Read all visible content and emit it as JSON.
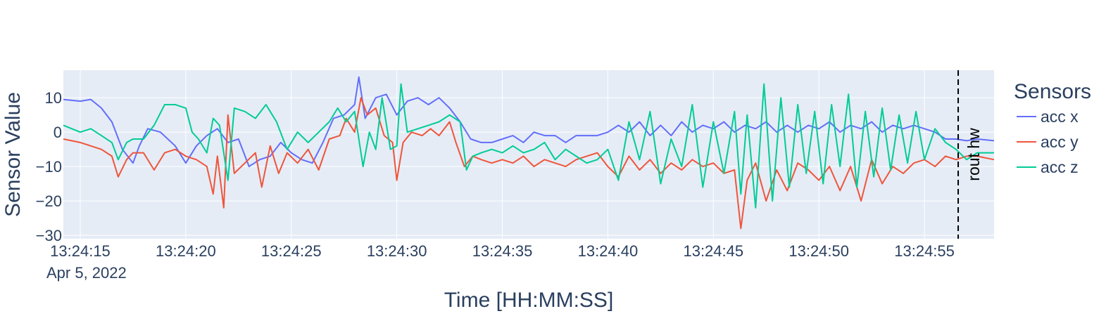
{
  "chart_data": {
    "type": "line",
    "xlabel": "Time [HH:MM:SS]",
    "ylabel": "Sensor Value",
    "date_label": "Apr 5, 2022",
    "x_start": "13:24:14.2",
    "x_range_seconds": [
      14.2,
      58.3
    ],
    "ylim": [
      -31,
      18
    ],
    "x_ticks": [
      {
        "label": "13:24:15",
        "t": 15
      },
      {
        "label": "13:24:20",
        "t": 20
      },
      {
        "label": "13:24:25",
        "t": 25
      },
      {
        "label": "13:24:30",
        "t": 30
      },
      {
        "label": "13:24:35",
        "t": 35
      },
      {
        "label": "13:24:40",
        "t": 40
      },
      {
        "label": "13:24:45",
        "t": 45
      },
      {
        "label": "13:24:50",
        "t": 50
      },
      {
        "label": "13:24:55",
        "t": 55
      }
    ],
    "y_ticks": [
      {
        "label": "10",
        "v": 10
      },
      {
        "label": "0",
        "v": 0
      },
      {
        "label": "−10",
        "v": -10
      },
      {
        "label": "−20",
        "v": -20
      },
      {
        "label": "−30",
        "v": -30
      }
    ],
    "grid": true,
    "legend": {
      "title": "Sensors",
      "placement": "right"
    },
    "annotation": {
      "label": "rout hw",
      "t": 56.6,
      "style": "dashed vertical line"
    },
    "series": [
      {
        "name": "acc x",
        "color": "#636efa",
        "points": [
          [
            14.2,
            9.5
          ],
          [
            15.0,
            9.0
          ],
          [
            15.5,
            9.5
          ],
          [
            16.0,
            7.0
          ],
          [
            16.5,
            3.0
          ],
          [
            17.0,
            -5.0
          ],
          [
            17.5,
            -9.0
          ],
          [
            17.8,
            -4.0
          ],
          [
            18.2,
            1.0
          ],
          [
            18.8,
            0.0
          ],
          [
            19.5,
            -4.0
          ],
          [
            20.0,
            -9.0
          ],
          [
            20.5,
            -4.0
          ],
          [
            21.0,
            -1.0
          ],
          [
            21.5,
            1.0
          ],
          [
            22.0,
            -3.0
          ],
          [
            22.5,
            -2.0
          ],
          [
            23.0,
            -10.0
          ],
          [
            23.5,
            -8.0
          ],
          [
            24.0,
            -7.0
          ],
          [
            24.5,
            -3.0
          ],
          [
            25.0,
            -6.0
          ],
          [
            25.5,
            -8.0
          ],
          [
            26.0,
            -9.0
          ],
          [
            26.5,
            -3.0
          ],
          [
            27.0,
            4.0
          ],
          [
            27.5,
            5.0
          ],
          [
            28.0,
            8.0
          ],
          [
            28.2,
            16.0
          ],
          [
            28.5,
            4.0
          ],
          [
            29.0,
            10.0
          ],
          [
            29.5,
            11.0
          ],
          [
            30.0,
            5.0
          ],
          [
            30.5,
            9.0
          ],
          [
            31.0,
            10.0
          ],
          [
            31.5,
            8.0
          ],
          [
            32.0,
            10.0
          ],
          [
            32.5,
            7.0
          ],
          [
            33.0,
            3.0
          ],
          [
            33.5,
            -2.0
          ],
          [
            34.0,
            -3.0
          ],
          [
            34.5,
            -3.0
          ],
          [
            35.0,
            -2.0
          ],
          [
            35.5,
            -1.0
          ],
          [
            36.0,
            -3.0
          ],
          [
            36.5,
            0.0
          ],
          [
            37.0,
            -1.0
          ],
          [
            37.5,
            -1.0
          ],
          [
            38.0,
            -3.0
          ],
          [
            38.5,
            -1.0
          ],
          [
            39.0,
            -1.0
          ],
          [
            39.5,
            -1.0
          ],
          [
            40.0,
            0.0
          ],
          [
            40.5,
            2.0
          ],
          [
            41.0,
            0.0
          ],
          [
            41.5,
            3.0
          ],
          [
            42.0,
            -1.0
          ],
          [
            42.5,
            2.0
          ],
          [
            43.0,
            -1.0
          ],
          [
            43.5,
            3.0
          ],
          [
            44.0,
            0.0
          ],
          [
            44.5,
            2.0
          ],
          [
            45.0,
            1.0
          ],
          [
            45.5,
            3.0
          ],
          [
            46.0,
            0.0
          ],
          [
            46.5,
            2.0
          ],
          [
            47.0,
            1.0
          ],
          [
            47.5,
            3.0
          ],
          [
            48.0,
            0.0
          ],
          [
            48.5,
            2.0
          ],
          [
            49.0,
            0.0
          ],
          [
            49.5,
            2.0
          ],
          [
            50.0,
            1.0
          ],
          [
            50.5,
            3.0
          ],
          [
            51.0,
            0.0
          ],
          [
            51.5,
            2.0
          ],
          [
            52.0,
            1.0
          ],
          [
            52.5,
            3.0
          ],
          [
            53.0,
            0.0
          ],
          [
            53.5,
            2.0
          ],
          [
            54.0,
            1.0
          ],
          [
            54.5,
            2.0
          ],
          [
            55.0,
            1.0
          ],
          [
            55.5,
            0.0
          ],
          [
            56.0,
            -2.0
          ],
          [
            56.5,
            -2.0
          ],
          [
            57.0,
            -2.5
          ],
          [
            57.5,
            -2.0
          ],
          [
            58.3,
            -2.5
          ]
        ]
      },
      {
        "name": "acc y",
        "color": "#ef553b",
        "points": [
          [
            14.2,
            -2.0
          ],
          [
            15.0,
            -3.0
          ],
          [
            15.5,
            -4.0
          ],
          [
            16.0,
            -5.0
          ],
          [
            16.5,
            -7.0
          ],
          [
            16.8,
            -13.0
          ],
          [
            17.2,
            -8.0
          ],
          [
            17.5,
            -6.0
          ],
          [
            18.0,
            -6.0
          ],
          [
            18.5,
            -11.0
          ],
          [
            19.0,
            -6.0
          ],
          [
            19.5,
            -5.0
          ],
          [
            20.0,
            -7.0
          ],
          [
            20.5,
            -8.0
          ],
          [
            21.0,
            -10.0
          ],
          [
            21.3,
            -18.0
          ],
          [
            21.5,
            -7.0
          ],
          [
            21.8,
            -22.0
          ],
          [
            22.0,
            5.0
          ],
          [
            22.3,
            -12.0
          ],
          [
            22.8,
            -9.0
          ],
          [
            23.3,
            -6.0
          ],
          [
            23.6,
            -16.0
          ],
          [
            24.0,
            -4.0
          ],
          [
            24.4,
            -12.0
          ],
          [
            24.8,
            -6.0
          ],
          [
            25.3,
            -9.0
          ],
          [
            25.8,
            -5.0
          ],
          [
            26.3,
            -11.0
          ],
          [
            26.8,
            -2.0
          ],
          [
            27.3,
            -1.0
          ],
          [
            27.6,
            4.0
          ],
          [
            28.0,
            0.0
          ],
          [
            28.3,
            10.0
          ],
          [
            28.6,
            5.0
          ],
          [
            29.0,
            7.0
          ],
          [
            29.4,
            -1.0
          ],
          [
            29.8,
            -3.0
          ],
          [
            30.0,
            -14.0
          ],
          [
            30.3,
            -3.0
          ],
          [
            30.7,
            0.0
          ],
          [
            31.2,
            -1.0
          ],
          [
            31.6,
            1.0
          ],
          [
            32.0,
            -1.0
          ],
          [
            32.5,
            3.0
          ],
          [
            32.8,
            -3.0
          ],
          [
            33.2,
            -10.0
          ],
          [
            33.6,
            -7.0
          ],
          [
            34.0,
            -8.0
          ],
          [
            34.5,
            -9.0
          ],
          [
            35.0,
            -8.0
          ],
          [
            35.5,
            -9.0
          ],
          [
            36.0,
            -7.0
          ],
          [
            36.5,
            -10.0
          ],
          [
            37.0,
            -8.0
          ],
          [
            37.5,
            -9.0
          ],
          [
            38.0,
            -10.0
          ],
          [
            38.5,
            -8.0
          ],
          [
            39.0,
            -7.0
          ],
          [
            39.5,
            -6.0
          ],
          [
            40.0,
            -10.0
          ],
          [
            40.5,
            -13.0
          ],
          [
            41.0,
            -7.0
          ],
          [
            41.5,
            -11.0
          ],
          [
            42.0,
            -8.0
          ],
          [
            42.5,
            -12.0
          ],
          [
            43.0,
            -9.0
          ],
          [
            43.5,
            -11.0
          ],
          [
            44.0,
            -8.0
          ],
          [
            44.5,
            -10.0
          ],
          [
            45.0,
            -9.0
          ],
          [
            45.5,
            -12.0
          ],
          [
            46.0,
            -11.0
          ],
          [
            46.3,
            -28.0
          ],
          [
            46.6,
            -14.0
          ],
          [
            47.0,
            -9.0
          ],
          [
            47.5,
            -20.0
          ],
          [
            48.0,
            -11.0
          ],
          [
            48.5,
            -17.0
          ],
          [
            49.0,
            -9.0
          ],
          [
            49.5,
            -11.0
          ],
          [
            50.0,
            -14.0
          ],
          [
            50.5,
            -10.0
          ],
          [
            51.0,
            -17.0
          ],
          [
            51.5,
            -10.0
          ],
          [
            52.0,
            -20.0
          ],
          [
            52.5,
            -8.0
          ],
          [
            53.0,
            -15.0
          ],
          [
            53.5,
            -10.0
          ],
          [
            54.0,
            -12.0
          ],
          [
            54.5,
            -9.0
          ],
          [
            55.0,
            -8.0
          ],
          [
            55.5,
            -10.0
          ],
          [
            56.0,
            -7.0
          ],
          [
            56.5,
            -8.0
          ],
          [
            57.0,
            -7.0
          ],
          [
            57.5,
            -7.0
          ],
          [
            58.3,
            -8.0
          ]
        ]
      },
      {
        "name": "acc z",
        "color": "#00cc96",
        "points": [
          [
            14.2,
            2.0
          ],
          [
            15.0,
            0.0
          ],
          [
            15.5,
            1.0
          ],
          [
            16.0,
            -1.0
          ],
          [
            16.5,
            -3.0
          ],
          [
            16.8,
            -8.0
          ],
          [
            17.2,
            -3.0
          ],
          [
            17.5,
            -2.0
          ],
          [
            18.0,
            -2.0
          ],
          [
            18.5,
            2.0
          ],
          [
            19.0,
            8.0
          ],
          [
            19.5,
            8.0
          ],
          [
            20.0,
            7.0
          ],
          [
            20.3,
            0.0
          ],
          [
            20.6,
            -2.0
          ],
          [
            21.0,
            -6.0
          ],
          [
            21.3,
            4.0
          ],
          [
            21.6,
            2.0
          ],
          [
            22.0,
            -14.0
          ],
          [
            22.3,
            7.0
          ],
          [
            22.8,
            6.0
          ],
          [
            23.3,
            4.0
          ],
          [
            23.8,
            8.0
          ],
          [
            24.3,
            3.0
          ],
          [
            24.8,
            -5.0
          ],
          [
            25.3,
            0.0
          ],
          [
            25.8,
            -3.0
          ],
          [
            26.3,
            0.0
          ],
          [
            26.8,
            3.0
          ],
          [
            27.2,
            7.0
          ],
          [
            27.6,
            3.0
          ],
          [
            28.0,
            6.0
          ],
          [
            28.4,
            -10.0
          ],
          [
            28.7,
            0.0
          ],
          [
            29.0,
            -5.0
          ],
          [
            29.3,
            10.0
          ],
          [
            29.7,
            -5.0
          ],
          [
            30.0,
            -4.0
          ],
          [
            30.2,
            14.0
          ],
          [
            30.5,
            0.0
          ],
          [
            31.0,
            1.0
          ],
          [
            31.5,
            2.0
          ],
          [
            32.0,
            3.0
          ],
          [
            32.5,
            5.0
          ],
          [
            33.0,
            3.0
          ],
          [
            33.3,
            -11.0
          ],
          [
            33.6,
            -7.0
          ],
          [
            34.0,
            -6.0
          ],
          [
            34.5,
            -5.0
          ],
          [
            35.0,
            -6.0
          ],
          [
            35.5,
            -4.0
          ],
          [
            36.0,
            -6.0
          ],
          [
            36.5,
            -5.0
          ],
          [
            37.0,
            -3.0
          ],
          [
            37.5,
            -8.0
          ],
          [
            38.0,
            -5.0
          ],
          [
            38.5,
            -7.0
          ],
          [
            39.0,
            -9.0
          ],
          [
            39.5,
            -8.0
          ],
          [
            40.0,
            -5.0
          ],
          [
            40.5,
            -14.0
          ],
          [
            41.0,
            3.0
          ],
          [
            41.5,
            -8.0
          ],
          [
            42.0,
            6.0
          ],
          [
            42.5,
            -15.0
          ],
          [
            43.0,
            -2.0
          ],
          [
            43.5,
            -10.0
          ],
          [
            44.0,
            8.0
          ],
          [
            44.5,
            -16.0
          ],
          [
            45.0,
            3.0
          ],
          [
            45.5,
            -12.0
          ],
          [
            46.0,
            6.0
          ],
          [
            46.3,
            -18.0
          ],
          [
            46.6,
            5.0
          ],
          [
            47.0,
            -22.0
          ],
          [
            47.4,
            14.0
          ],
          [
            47.8,
            -20.0
          ],
          [
            48.2,
            10.0
          ],
          [
            48.6,
            -16.0
          ],
          [
            49.0,
            8.0
          ],
          [
            49.4,
            -12.0
          ],
          [
            49.8,
            6.0
          ],
          [
            50.2,
            -15.0
          ],
          [
            50.6,
            8.0
          ],
          [
            51.0,
            -10.0
          ],
          [
            51.4,
            11.0
          ],
          [
            51.8,
            -16.0
          ],
          [
            52.2,
            6.0
          ],
          [
            52.6,
            -13.0
          ],
          [
            53.0,
            7.0
          ],
          [
            53.4,
            -11.0
          ],
          [
            53.8,
            5.0
          ],
          [
            54.2,
            -9.0
          ],
          [
            54.6,
            6.0
          ],
          [
            55.0,
            -8.0
          ],
          [
            55.5,
            1.0
          ],
          [
            56.0,
            -3.0
          ],
          [
            56.5,
            -5.0
          ],
          [
            57.0,
            -8.0
          ],
          [
            57.5,
            -6.0
          ],
          [
            58.3,
            -6.0
          ]
        ]
      }
    ]
  }
}
